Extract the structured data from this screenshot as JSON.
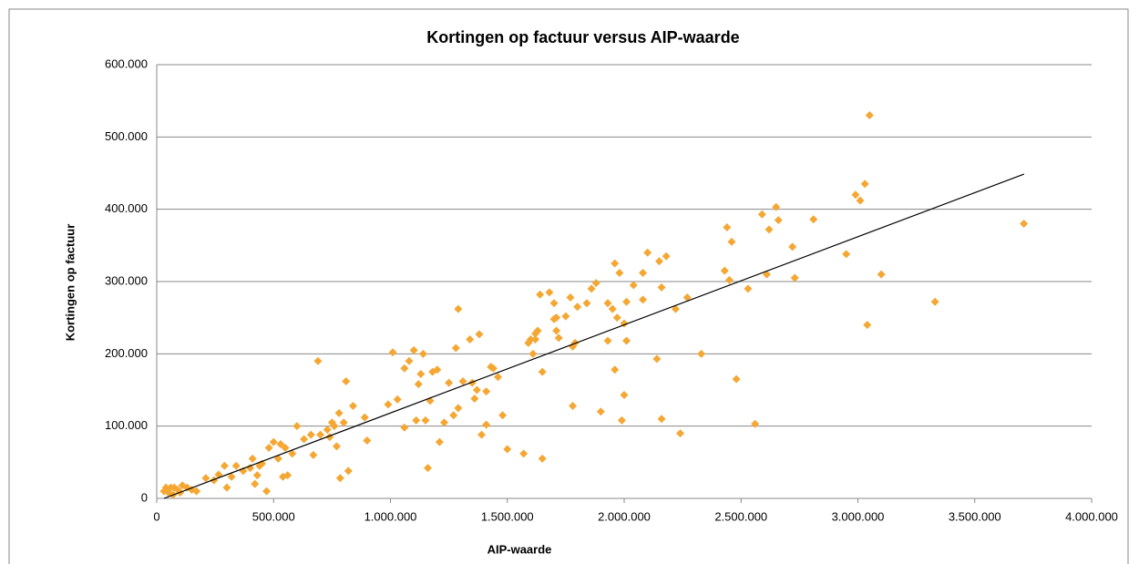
{
  "chart_data": {
    "type": "scatter",
    "title": "Kortingen op factuur versus AIP-waarde",
    "x_label": "AIP-waarde",
    "y_label": "Kortingen op factuur",
    "color": "#f4a733",
    "grid": true,
    "xlim": [
      0,
      4000000
    ],
    "xticks": [
      0,
      {
        "value": 500000,
        "label": "500.000"
      },
      {
        "value": 1000000,
        "label": "1.000.000"
      },
      {
        "value": 1500000,
        "label": "1.500.000"
      },
      {
        "value": 2000000,
        "label": "2.000.000"
      },
      {
        "value": 2500000,
        "label": "2.500.000"
      },
      {
        "value": 3000000,
        "label": "3.000.000"
      },
      {
        "value": 3500000,
        "label": "3.500.000"
      },
      {
        "value": 4000000,
        "label": "4.000.000"
      }
    ],
    "ylim": [
      0,
      600000
    ],
    "yticks": [
      0,
      {
        "value": 100000,
        "label": "100.000"
      },
      {
        "value": 200000,
        "label": "200.000"
      },
      {
        "value": 300000,
        "label": "300.000"
      },
      {
        "value": 400000,
        "label": "400.000"
      },
      {
        "value": 500000,
        "label": "500.000"
      },
      {
        "value": 600000,
        "label": "600.000"
      }
    ],
    "trendline": {
      "x": [
        31000,
        3711000
      ],
      "y": [
        0,
        448700
      ]
    },
    "x": [
      31000,
      40000,
      50000,
      60000,
      70000,
      75000,
      90000,
      100000,
      110000,
      130000,
      150000,
      170000,
      210000,
      245000,
      265000,
      290000,
      300000,
      320000,
      340000,
      370000,
      400000,
      410000,
      420000,
      430000,
      440000,
      450000,
      470000,
      480000,
      500000,
      520000,
      530000,
      540000,
      550000,
      560000,
      580000,
      600000,
      630000,
      660000,
      670000,
      690000,
      700000,
      730000,
      740000,
      750000,
      760000,
      770000,
      780000,
      785000,
      800000,
      810000,
      820000,
      840000,
      890000,
      900000,
      990000,
      1010000,
      1030000,
      1060000,
      1060000,
      1080000,
      1100000,
      1110000,
      1120000,
      1130000,
      1140000,
      1150000,
      1160000,
      1170000,
      1180000,
      1200000,
      1210000,
      1230000,
      1250000,
      1270000,
      1280000,
      1290000,
      1290000,
      1310000,
      1340000,
      1350000,
      1360000,
      1370000,
      1380000,
      1390000,
      1410000,
      1410000,
      1430000,
      1440000,
      1460000,
      1480000,
      1500000,
      1570000,
      1590000,
      1600000,
      1610000,
      1620000,
      1620000,
      1630000,
      1640000,
      1650000,
      1650000,
      1680000,
      1700000,
      1700000,
      1710000,
      1710000,
      1720000,
      1750000,
      1770000,
      1780000,
      1780000,
      1790000,
      1800000,
      1840000,
      1860000,
      1880000,
      1900000,
      1930000,
      1930000,
      1950000,
      1960000,
      1960000,
      1970000,
      1980000,
      1990000,
      2000000,
      2000000,
      2010000,
      2010000,
      2040000,
      2080000,
      2080000,
      2100000,
      2140000,
      2150000,
      2160000,
      2160000,
      2180000,
      2220000,
      2240000,
      2270000,
      2330000,
      2430000,
      2440000,
      2450000,
      2460000,
      2480000,
      2530000,
      2560000,
      2590000,
      2610000,
      2620000,
      2650000,
      2660000,
      2720000,
      2730000,
      2810000,
      2950000,
      2990000,
      3010000,
      3030000,
      3040000,
      3050000,
      3100000,
      3330000,
      3710000
    ],
    "values": [
      10000,
      15000,
      8000,
      15000,
      5000,
      15000,
      12000,
      8000,
      18000,
      15000,
      12000,
      10000,
      28000,
      25000,
      33000,
      45000,
      15000,
      30000,
      45000,
      38000,
      42000,
      55000,
      20000,
      32000,
      45000,
      48000,
      10000,
      70000,
      78000,
      55000,
      75000,
      30000,
      70000,
      32000,
      62000,
      100000,
      82000,
      88000,
      60000,
      190000,
      88000,
      95000,
      85000,
      105000,
      100000,
      72000,
      118000,
      28000,
      105000,
      162000,
      38000,
      128000,
      112000,
      80000,
      130000,
      202000,
      137000,
      180000,
      98000,
      190000,
      205000,
      108000,
      158000,
      172000,
      200000,
      108000,
      42000,
      135000,
      175000,
      178000,
      78000,
      105000,
      160000,
      115000,
      208000,
      125000,
      262000,
      162000,
      220000,
      160000,
      138000,
      150000,
      227000,
      88000,
      102000,
      148000,
      182000,
      180000,
      168000,
      115000,
      68000,
      62000,
      215000,
      220000,
      200000,
      228000,
      220000,
      232000,
      282000,
      175000,
      55000,
      285000,
      270000,
      248000,
      250000,
      232000,
      222000,
      252000,
      278000,
      210000,
      128000,
      215000,
      265000,
      270000,
      290000,
      298000,
      120000,
      218000,
      270000,
      262000,
      178000,
      325000,
      250000,
      312000,
      108000,
      242000,
      143000,
      272000,
      218000,
      295000,
      312000,
      275000,
      340000,
      193000,
      328000,
      292000,
      110000,
      335000,
      262000,
      90000,
      278000,
      200000,
      315000,
      375000,
      302000,
      355000,
      165000,
      290000,
      103000,
      393000,
      310000,
      372000,
      403000,
      385000,
      348000,
      305000,
      386000,
      338000,
      420000,
      412000,
      435000,
      240000,
      530000,
      310000,
      272000,
      380000
    ]
  }
}
